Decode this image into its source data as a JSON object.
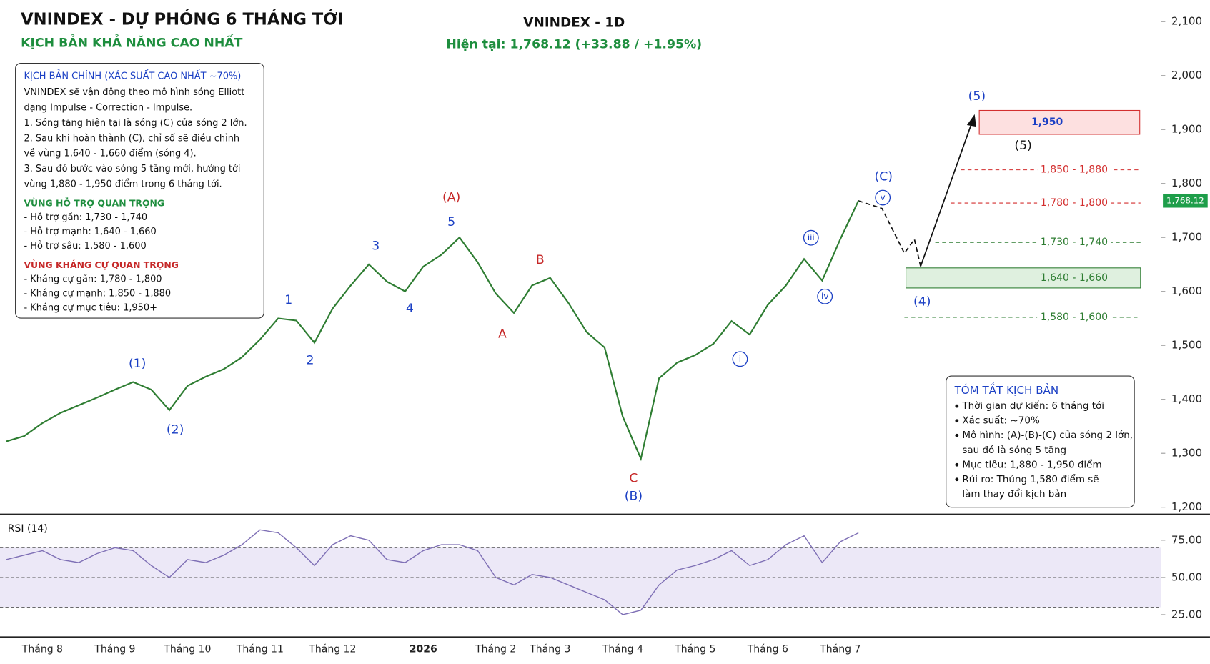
{
  "header": {
    "title": "VNINDEX - DỰ PHÓNG 6 THÁNG TỚI",
    "subtitle": "KỊCH BẢN KHẢ NĂNG CAO NHẤT"
  },
  "chart_data": [
    {
      "type": "line",
      "title": "VNINDEX - 1D",
      "subtitle": "Hiện tại: 1,768.12 (+33.88 / +1.95%)",
      "categories": [
        null,
        null,
        "Tháng 8",
        null,
        null,
        null,
        "Tháng 9",
        null,
        null,
        null,
        "Tháng 10",
        null,
        null,
        null,
        "Tháng 11",
        null,
        null,
        null,
        "Tháng 12",
        null,
        null,
        null,
        null,
        "2026",
        null,
        null,
        null,
        "Tháng 2",
        null,
        null,
        "Tháng 3",
        null,
        null,
        null,
        "Tháng 4",
        null,
        null,
        null,
        "Tháng 5",
        null,
        null,
        null,
        "Tháng 6",
        null,
        null,
        null,
        "Tháng 7",
        null
      ],
      "values": [
        1322,
        1332,
        1356,
        1375,
        1389,
        1403,
        1418,
        1432,
        1418,
        1380,
        1425,
        1442,
        1456,
        1478,
        1511,
        1550,
        1546,
        1505,
        1568,
        1611,
        1650,
        1618,
        1600,
        1646,
        1668,
        1700,
        1654,
        1596,
        1560,
        1611,
        1625,
        1579,
        1525,
        1496,
        1368,
        1290,
        1439,
        1468,
        1482,
        1503,
        1545,
        1520,
        1575,
        1611,
        1660,
        1620,
        1697,
        1768.12
      ],
      "color": "#2e7d32",
      "ylim": [
        1200,
        2100
      ],
      "yticks": [
        {
          "value": 1200,
          "label": "1,200"
        },
        {
          "value": 1300,
          "label": "1,300"
        },
        {
          "value": 1400,
          "label": "1,400"
        },
        {
          "value": 1500,
          "label": "1,500"
        },
        {
          "value": 1600,
          "label": "1,600"
        },
        {
          "value": 1700,
          "label": "1,700"
        },
        {
          "value": 1800,
          "label": "1,800"
        },
        {
          "value": 1900,
          "label": "1,900"
        },
        {
          "value": 2000,
          "label": "2,000"
        },
        {
          "value": 2100,
          "label": "2,100"
        }
      ],
      "current_price": {
        "value": 1768.12,
        "label": "1,768.12"
      },
      "wave_labels": [
        "(1)",
        "(2)",
        "1",
        "2",
        "3",
        "4",
        "5",
        "(A)",
        "A",
        "B",
        "C",
        "(B)",
        "i",
        "iii",
        "iv",
        "v",
        "(C)",
        "(5)",
        "(5)",
        "(4)"
      ],
      "zones": [
        "1,950",
        "1,640 - 1,660",
        "1,850 - 1,880",
        "1,780 - 1,800",
        "1,730 - 1,740",
        "1,580 - 1,600"
      ]
    },
    {
      "type": "line",
      "title": "RSI (14)",
      "values": [
        62,
        65,
        68,
        62,
        60,
        66,
        70,
        68,
        58,
        50,
        62,
        60,
        65,
        72,
        82,
        80,
        70,
        58,
        72,
        78,
        75,
        62,
        60,
        68,
        72,
        72,
        68,
        50,
        45,
        52,
        50,
        45,
        40,
        35,
        25,
        28,
        45,
        55,
        58,
        62,
        68,
        58,
        62,
        72,
        78,
        60,
        74,
        80
      ],
      "color": "#7e6fb5",
      "ylim": [
        10,
        92
      ],
      "yticks": [
        {
          "value": 25,
          "label": "25.00"
        },
        {
          "value": 50,
          "label": "50.00"
        },
        {
          "value": 75,
          "label": "75.00"
        }
      ],
      "reference_lines": [
        70,
        50,
        30
      ]
    }
  ],
  "main_scenario": {
    "title": "KỊCH BẢN CHÍNH (XÁC SUẤT CAO NHẤT ~70%)",
    "lines": [
      "VNINDEX sẽ vận động theo mô hình sóng Elliott",
      "dạng Impulse - Correction - Impulse.",
      "1. Sóng tăng hiện tại là sóng (C) của sóng 2 lớn.",
      "2. Sau khi hoàn thành (C), chỉ số sẽ điều chỉnh",
      "về vùng 1,640 - 1,660 điểm (sóng 4).",
      "3. Sau đó bước vào sóng 5 tăng mới, hướng tới",
      "vùng 1,880 - 1,950 điểm trong 6 tháng tới."
    ],
    "support_title": "VÙNG HỖ TRỢ QUAN TRỌNG",
    "support": [
      "- Hỗ trợ gần: 1,730 - 1,740",
      "- Hỗ trợ mạnh: 1,640 - 1,660",
      "- Hỗ trợ sâu: 1,580 - 1,600"
    ],
    "resistance_title": "VÙNG KHÁNG CỰ QUAN TRỌNG",
    "resistance": [
      "- Kháng cự gần: 1,780 - 1,800",
      "- Kháng cự mạnh: 1,850 - 1,880",
      "- Kháng cự mục tiêu: 1,950+"
    ]
  },
  "summary": {
    "title": "TÓM TẮT KỊCH BẢN",
    "items": [
      [
        "Thời gian dự kiến: 6 tháng tới"
      ],
      [
        "Xác suất: ~70%"
      ],
      [
        "Mô hình: (A)-(B)-(C) của sóng 2 lớn,",
        "sau đó là sóng 5 tăng"
      ],
      [
        "Mục tiêu: 1,880 - 1,950 điểm"
      ],
      [
        "Rủi ro: Thủng 1,580 điểm sẽ",
        "làm thay đổi kịch bản"
      ]
    ]
  }
}
